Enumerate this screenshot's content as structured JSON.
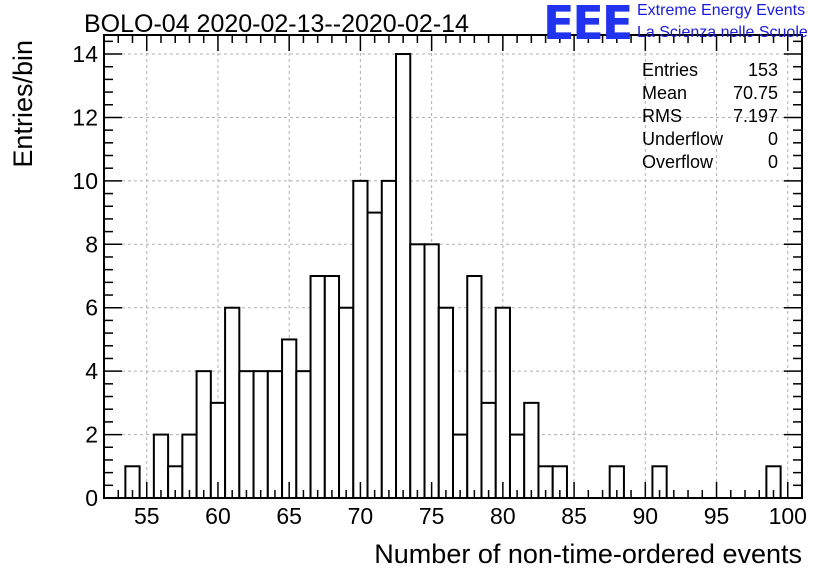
{
  "header": {
    "title": "BOLO-04 2020-02-13--2020-02-14",
    "logo_text": "EEE",
    "logo_line1": "Extreme Energy Events",
    "logo_line2": "La Scienza nelle Scuole"
  },
  "stats": {
    "rows": [
      {
        "label": "Entries",
        "value": "153"
      },
      {
        "label": "Mean",
        "value": "70.75"
      },
      {
        "label": "RMS",
        "value": "7.197"
      },
      {
        "label": "Underflow",
        "value": "0"
      },
      {
        "label": "Overflow",
        "value": "0"
      }
    ]
  },
  "colors": {
    "bar_fill": "#ffffff",
    "bar_stroke": "#000000",
    "grid": "#b0b0b0",
    "logo": "#2233ee"
  },
  "chart_data": {
    "type": "bar",
    "xlabel": "Number of non-time-ordered events",
    "ylabel": "Entries/bin",
    "xlim": [
      52,
      101
    ],
    "ylim": [
      0,
      14.6
    ],
    "grid": true,
    "bin_width": 1,
    "xticks": [
      55,
      60,
      65,
      70,
      75,
      80,
      85,
      90,
      95,
      100
    ],
    "yticks": [
      0,
      2,
      4,
      6,
      8,
      10,
      12,
      14
    ],
    "x": [
      54,
      56,
      57,
      58,
      59,
      60,
      61,
      62,
      63,
      64,
      65,
      66,
      67,
      68,
      69,
      70,
      71,
      72,
      73,
      74,
      75,
      76,
      77,
      78,
      79,
      80,
      81,
      82,
      83,
      84,
      88,
      91,
      99
    ],
    "values": [
      1,
      2,
      1,
      2,
      4,
      3,
      6,
      4,
      4,
      4,
      5,
      4,
      7,
      7,
      6,
      10,
      9,
      10,
      14,
      8,
      8,
      6,
      2,
      7,
      3,
      6,
      2,
      3,
      1,
      1,
      1,
      1,
      1
    ]
  }
}
